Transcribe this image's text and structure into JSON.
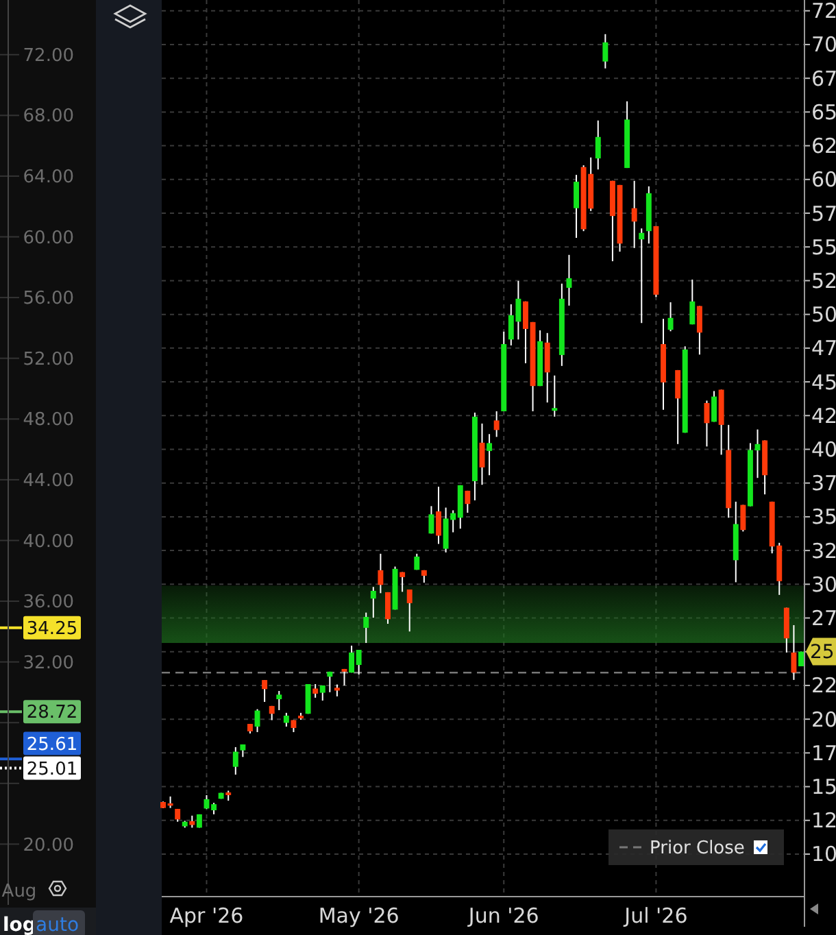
{
  "chart_data": [
    {
      "type": "line",
      "categories": [
        "Aug"
      ],
      "ylim": [
        16,
        75.6
      ],
      "yticks": [
        {
          "value": 20,
          "label": "20.00"
        },
        {
          "value": 24,
          "label": null
        },
        {
          "value": 28,
          "label": null
        },
        {
          "value": 32,
          "label": "32.00"
        },
        {
          "value": 36,
          "label": "36.00"
        },
        {
          "value": 40,
          "label": "40.00"
        },
        {
          "value": 44,
          "label": "44.00"
        },
        {
          "value": 48,
          "label": "48.00"
        },
        {
          "value": 52,
          "label": "52.00"
        },
        {
          "value": 56,
          "label": "56.00"
        },
        {
          "value": 60,
          "label": "60.00"
        },
        {
          "value": 64,
          "label": "64.00"
        },
        {
          "value": 68,
          "label": "68.00"
        },
        {
          "value": 72,
          "label": "72.00"
        }
      ],
      "ref_lines": [
        {
          "axis": "y",
          "value": 34.25,
          "label": "34.25",
          "color": "#f5e12a"
        },
        {
          "axis": "y",
          "value": 28.72,
          "label": "28.72",
          "color": "#6abf69"
        },
        {
          "axis": "y",
          "value": 25.61,
          "label": "25.61",
          "color": "#1f5fd6"
        },
        {
          "axis": "y",
          "value": 25.01,
          "label": "25.01",
          "color": "#ffffff",
          "line_style": "dotted"
        }
      ],
      "annotations": [
        "log",
        "auto"
      ]
    },
    {
      "type": "candlestick",
      "categories": [
        null,
        null,
        null,
        null,
        null,
        null,
        "Apr '26",
        null,
        null,
        null,
        null,
        null,
        null,
        null,
        null,
        null,
        null,
        null,
        null,
        null,
        null,
        null,
        null,
        null,
        null,
        null,
        null,
        "May '26",
        null,
        null,
        null,
        null,
        null,
        null,
        null,
        null,
        null,
        null,
        null,
        null,
        null,
        null,
        null,
        null,
        null,
        null,
        null,
        "Jun '26",
        null,
        null,
        null,
        null,
        null,
        null,
        null,
        null,
        null,
        null,
        null,
        null,
        null,
        null,
        null,
        null,
        null,
        null,
        null,
        null,
        "Jul '26",
        null,
        null,
        null,
        null,
        null,
        null,
        null,
        null,
        null,
        null,
        null,
        null,
        null,
        null,
        null,
        null,
        null,
        null,
        null,
        null
      ],
      "ohlc": [
        [
          13.86,
          13.9,
          13.4,
          13.42
        ],
        [
          13.76,
          14.27,
          13.42,
          13.59
        ],
        [
          13.35,
          13.35,
          12.4,
          12.57
        ],
        [
          12.06,
          12.47,
          11.96,
          12.4
        ],
        [
          12.44,
          12.85,
          11.96,
          12.16
        ],
        [
          11.96,
          12.95,
          11.96,
          12.95
        ],
        [
          13.38,
          14.37,
          13.35,
          14.07
        ],
        [
          13.25,
          13.8,
          12.95,
          13.7
        ],
        [
          14.1,
          14.54,
          14.1,
          14.54
        ],
        [
          14.57,
          14.7,
          13.96,
          14.37
        ],
        [
          16.47,
          17.93,
          15.89,
          17.59
        ],
        [
          17.69,
          18.13,
          17.2,
          18.13
        ],
        [
          19.65,
          19.65,
          18.94,
          19.1
        ],
        [
          19.45,
          20.74,
          19.04,
          20.64
        ],
        [
          22.9,
          22.9,
          21.28,
          22.23
        ],
        [
          20.98,
          20.98,
          19.93,
          20.4
        ],
        [
          21.48,
          22.09,
          20.67,
          21.82
        ],
        [
          19.73,
          20.47,
          19.45,
          20.26
        ],
        [
          19.93,
          19.93,
          19.04,
          19.35
        ],
        [
          20.26,
          20.47,
          19.96,
          20.06
        ],
        [
          20.4,
          22.6,
          20.4,
          22.6
        ],
        [
          22.27,
          22.6,
          21.59,
          21.89
        ],
        [
          21.96,
          22.5,
          21.38,
          22.5
        ],
        [
          23.15,
          23.52,
          22.0,
          23.52
        ],
        [
          22.33,
          22.57,
          21.69,
          22.12
        ],
        [
          23.72,
          23.72,
          22.5,
          23.52
        ],
        [
          23.45,
          25.45,
          23.45,
          24.94
        ],
        [
          24.02,
          25.14,
          23.31,
          25.14
        ],
        [
          26.77,
          27.9,
          25.65,
          27.58
        ],
        [
          28.94,
          29.8,
          27.52,
          29.51
        ],
        [
          31.04,
          32.26,
          29.34,
          29.95
        ],
        [
          29.41,
          29.41,
          27.07,
          27.41
        ],
        [
          28.12,
          31.31,
          28.12,
          31.14
        ],
        [
          30.9,
          30.9,
          29.44,
          30.53
        ],
        [
          29.61,
          29.61,
          26.5,
          28.6
        ],
        [
          31.07,
          32.26,
          31.07,
          32.05
        ],
        [
          31.04,
          31.04,
          30.12,
          30.63
        ],
        [
          33.76,
          35.79,
          33.76,
          35.18
        ],
        [
          35.4,
          37.23,
          32.99,
          33.6
        ],
        [
          32.63,
          35.68,
          32.36,
          34.87
        ],
        [
          34.77,
          35.48,
          33.85,
          35.27
        ],
        [
          34.93,
          37.34,
          34.12,
          37.34
        ],
        [
          36.93,
          36.93,
          35.3,
          35.95
        ],
        [
          37.64,
          42.72,
          36.22,
          42.42
        ],
        [
          40.49,
          41.91,
          37.37,
          38.66
        ],
        [
          39.88,
          41.13,
          38.08,
          40.46
        ],
        [
          42.14,
          42.82,
          40.92,
          41.43
        ],
        [
          42.82,
          48.72,
          42.82,
          47.8
        ],
        [
          48.14,
          50.75,
          47.7,
          49.94
        ],
        [
          49.46,
          52.48,
          48.14,
          51.16
        ],
        [
          50.96,
          50.96,
          46.38,
          48.92
        ],
        [
          49.43,
          49.43,
          42.82,
          44.69
        ],
        [
          44.69,
          48.82,
          44.69,
          48.01
        ],
        [
          47.91,
          48.62,
          43.47,
          45.7
        ],
        [
          42.86,
          45.47,
          42.42,
          43.06
        ],
        [
          46.99,
          52.28,
          46.18,
          51.16
        ],
        [
          51.97,
          54.41,
          50.65,
          52.68
        ],
        [
          57.87,
          60.34,
          55.67,
          59.83
        ],
        [
          60.92,
          61.05,
          56.17,
          56.31
        ],
        [
          60.41,
          61.63,
          57.66,
          57.84
        ],
        [
          61.56,
          64.37,
          60.74,
          63.15
        ],
        [
          68.74,
          70.77,
          68.23,
          70.16
        ],
        [
          59.9,
          59.9,
          53.94,
          57.29
        ],
        [
          59.59,
          59.59,
          54.65,
          55.25
        ],
        [
          60.85,
          65.79,
          60.85,
          64.44
        ],
        [
          57.87,
          59.9,
          54.92,
          56.88
        ],
        [
          55.56,
          56.37,
          49.36,
          56.04
        ],
        [
          56.17,
          59.49,
          55.25,
          58.98
        ],
        [
          56.54,
          56.54,
          51.29,
          51.46
        ],
        [
          47.8,
          49.67,
          42.93,
          44.96
        ],
        [
          48.86,
          50.9,
          48.75,
          49.74
        ],
        [
          45.87,
          45.87,
          40.39,
          43.77
        ],
        [
          41.23,
          47.63,
          41.23,
          47.4
        ],
        [
          49.26,
          52.58,
          49.26,
          50.96
        ],
        [
          50.62,
          50.62,
          47.02,
          48.65
        ],
        [
          43.43,
          43.61,
          40.21,
          41.94
        ],
        [
          42.04,
          44.32,
          42.04,
          43.91
        ],
        [
          44.42,
          44.42,
          39.6,
          41.81
        ],
        [
          39.95,
          41.81,
          34.93,
          35.64
        ],
        [
          31.78,
          36.12,
          30.15,
          34.46
        ],
        [
          35.88,
          35.88,
          33.91,
          34.02
        ],
        [
          35.78,
          40.46,
          35.78,
          39.95
        ],
        [
          39.92,
          41.47,
          37.88,
          40.39
        ],
        [
          40.66,
          40.66,
          36.66,
          38.08
        ],
        [
          36.12,
          36.12,
          32.29,
          32.8
        ],
        [
          32.87,
          33.07,
          29.21,
          30.23
        ],
        [
          28.26,
          28.26,
          24.94,
          25.99
        ],
        [
          24.94,
          26.97,
          22.91,
          23.45
        ],
        [
          23.92,
          25.01,
          23.92,
          25.01
        ]
      ],
      "ylim": [
        6.85,
        73.3
      ],
      "yticks": [
        10,
        {
          "value": 12.5,
          "label": "12"
        },
        15,
        {
          "value": 17.5,
          "label": "17"
        },
        20,
        {
          "value": 22.5,
          "label": "22"
        },
        {
          "value": 25,
          "label": null
        },
        {
          "value": 27.5,
          "label": "27"
        },
        30,
        {
          "value": 32.5,
          "label": "32"
        },
        35,
        {
          "value": 37.5,
          "label": "37"
        },
        40,
        {
          "value": 42.5,
          "label": "42"
        },
        45,
        {
          "value": 47.5,
          "label": "47"
        },
        50,
        {
          "value": 52.5,
          "label": "52"
        },
        55,
        {
          "value": 57.5,
          "label": "57"
        },
        60,
        {
          "value": 62.5,
          "label": "62"
        },
        65,
        {
          "value": 67.5,
          "label": "67"
        },
        70,
        {
          "value": 72.5,
          "label": "72"
        }
      ],
      "grid": true,
      "legend": "bottom right",
      "ref_lines": [
        {
          "axis": "y",
          "value": 23.45,
          "label": "Prior Close",
          "color": "#777777",
          "line_style": "dashed"
        }
      ],
      "bands": [
        {
          "axis": "y",
          "from": 25.65,
          "to": 29.9,
          "color": "#1e6b1e"
        }
      ],
      "annotations": [
        "25"
      ]
    }
  ]
}
